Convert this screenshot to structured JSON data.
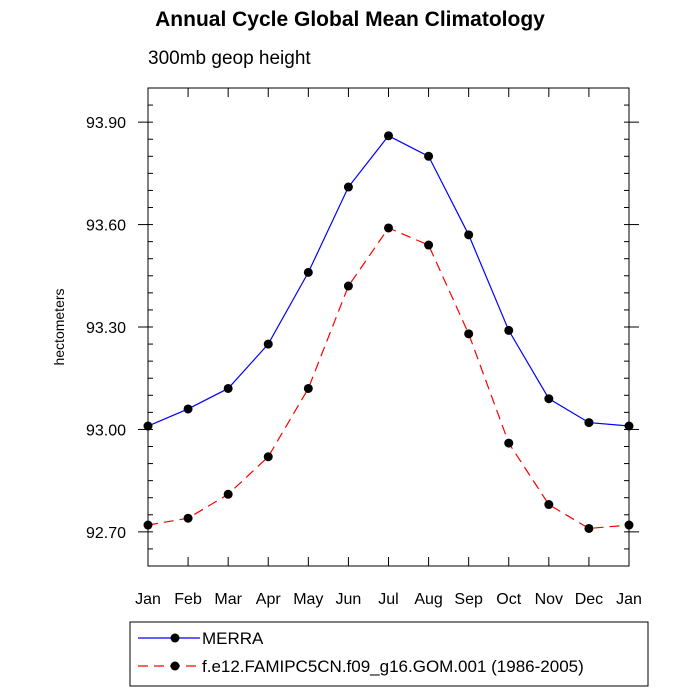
{
  "chart_data": {
    "type": "line",
    "title": "Annual Cycle Global Mean Climatology",
    "subtitle": "300mb geop height",
    "xlabel": "",
    "ylabel": "hectometers",
    "categories": [
      "Jan",
      "Feb",
      "Mar",
      "Apr",
      "May",
      "Jun",
      "Jul",
      "Aug",
      "Sep",
      "Oct",
      "Nov",
      "Dec",
      "Jan"
    ],
    "ylim": [
      92.6,
      94.0
    ],
    "yticks": [
      92.7,
      93.0,
      93.3,
      93.6,
      93.9
    ],
    "ytick_labels": [
      "92.70",
      "93.00",
      "93.30",
      "93.60",
      "93.90"
    ],
    "series": [
      {
        "name": "MERRA",
        "color": "#0000ff",
        "dash": "solid",
        "values": [
          93.01,
          93.06,
          93.12,
          93.25,
          93.46,
          93.71,
          93.86,
          93.8,
          93.57,
          93.29,
          93.09,
          93.02,
          93.01
        ]
      },
      {
        "name": "f.e12.FAMIPC5CN.f09_g16.GOM.001 (1986-2005)",
        "color": "#ff0000",
        "dash": "dashed",
        "values": [
          92.72,
          92.74,
          92.81,
          92.92,
          93.12,
          93.42,
          93.59,
          93.54,
          93.28,
          92.96,
          92.78,
          92.71,
          92.72
        ]
      }
    ],
    "legend_position": "bottom"
  }
}
